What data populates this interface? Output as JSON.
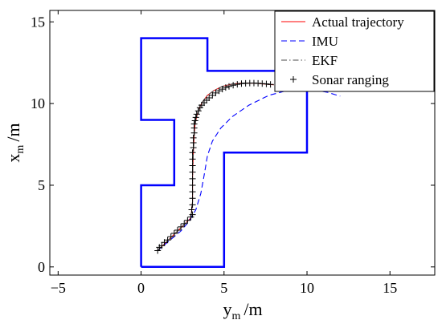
{
  "chart_data": {
    "type": "line",
    "title": "",
    "xlabel": {
      "main": "y",
      "sub": "m",
      "unit": "/m"
    },
    "ylabel": {
      "main": "x",
      "sub": "m",
      "unit": "/m"
    },
    "xlim": [
      -5.5,
      17.7
    ],
    "ylim": [
      -0.5,
      15.7
    ],
    "xticks": [
      -5,
      0,
      5,
      10,
      15
    ],
    "yticks": [
      0,
      5,
      10,
      15
    ],
    "grid": false,
    "legend_position": "top-right",
    "boundary": {
      "color": "#0000ff",
      "points": [
        [
          0,
          0
        ],
        [
          5,
          0
        ],
        [
          5,
          7
        ],
        [
          10,
          7
        ],
        [
          10,
          12
        ],
        [
          4,
          12
        ],
        [
          4,
          14
        ],
        [
          0,
          14
        ],
        [
          0,
          9
        ],
        [
          2,
          9
        ],
        [
          2,
          5
        ],
        [
          0,
          5
        ],
        [
          0,
          0
        ]
      ]
    },
    "series": [
      {
        "name": "Actual trajectory",
        "style": "solid",
        "color": "#ff0000",
        "x": [
          1.0,
          1.5,
          2.0,
          2.5,
          3.0,
          3.1,
          3.1,
          3.15,
          3.2,
          3.25,
          3.35,
          3.5,
          3.7,
          4.0,
          4.4,
          4.9,
          5.5,
          6.1,
          6.8,
          7.4,
          8.0
        ],
        "y": [
          1.0,
          1.5,
          2.0,
          2.5,
          3.0,
          4.0,
          5.5,
          7.0,
          8.0,
          8.7,
          9.2,
          9.7,
          10.1,
          10.5,
          10.8,
          11.05,
          11.2,
          11.25,
          11.25,
          11.2,
          11.15
        ]
      },
      {
        "name": "IMU",
        "style": "dashed",
        "color": "#0000ff",
        "x": [
          1.0,
          1.7,
          2.4,
          2.9,
          3.3,
          3.6,
          3.8,
          4.0,
          4.3,
          4.8,
          5.5,
          6.5,
          7.7,
          9.0,
          10.2,
          11.2,
          12.0
        ],
        "y": [
          1.0,
          1.6,
          2.2,
          2.8,
          3.5,
          4.5,
          5.6,
          6.8,
          7.7,
          8.5,
          9.2,
          9.9,
          10.5,
          10.85,
          10.85,
          10.7,
          10.45
        ]
      },
      {
        "name": "EKF",
        "style": "dashdot",
        "color": "#4a4a4a",
        "x": [
          1.0,
          1.5,
          2.0,
          2.5,
          3.0,
          3.1,
          3.1,
          3.15,
          3.2,
          3.25,
          3.35,
          3.5,
          3.7,
          4.0,
          4.4,
          4.9,
          5.5,
          6.1,
          6.8,
          7.4,
          8.0
        ],
        "y": [
          1.0,
          1.5,
          2.0,
          2.5,
          3.0,
          4.0,
          5.5,
          7.0,
          8.0,
          8.7,
          9.2,
          9.7,
          10.1,
          10.5,
          10.8,
          11.05,
          11.2,
          11.25,
          11.25,
          11.2,
          11.15
        ]
      },
      {
        "name": "Sonar ranging",
        "style": "plus",
        "color": "#000000",
        "x": [
          1.0,
          1.1,
          1.25,
          1.4,
          1.6,
          1.8,
          2.0,
          2.2,
          2.4,
          2.6,
          2.8,
          3.0,
          3.1,
          3.05,
          3.1,
          3.1,
          3.1,
          3.1,
          3.1,
          3.1,
          3.1,
          3.1,
          3.1,
          3.15,
          3.15,
          3.15,
          3.2,
          3.2,
          3.2,
          3.25,
          3.3,
          3.35,
          3.45,
          3.55,
          3.65,
          3.8,
          3.95,
          4.1,
          4.3,
          4.5,
          4.7,
          4.9,
          5.1,
          5.3,
          5.55,
          5.8,
          6.05,
          6.3,
          6.55,
          6.8,
          7.05,
          7.3,
          7.55,
          7.8
        ],
        "y": [
          1.0,
          1.2,
          1.3,
          1.5,
          1.65,
          1.85,
          2.05,
          2.25,
          2.45,
          2.65,
          2.85,
          3.05,
          3.2,
          3.5,
          3.8,
          4.2,
          4.6,
          5.0,
          5.4,
          5.8,
          6.2,
          6.6,
          7.0,
          7.3,
          7.6,
          7.9,
          8.2,
          8.5,
          8.75,
          8.95,
          9.15,
          9.35,
          9.55,
          9.75,
          9.9,
          10.05,
          10.2,
          10.35,
          10.5,
          10.65,
          10.78,
          10.88,
          10.98,
          11.05,
          11.12,
          11.18,
          11.22,
          11.24,
          11.25,
          11.25,
          11.24,
          11.22,
          11.2,
          11.17
        ]
      }
    ]
  }
}
